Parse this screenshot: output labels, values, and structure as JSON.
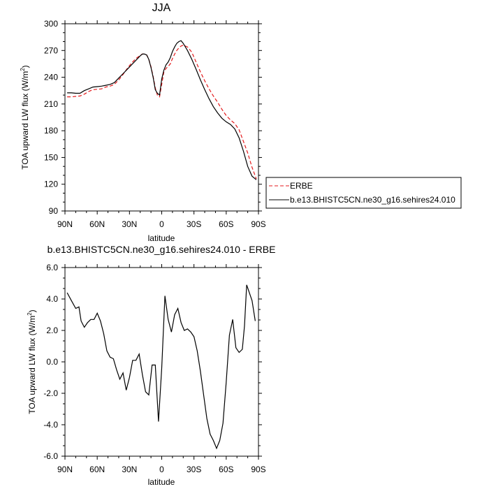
{
  "chart_data": [
    {
      "type": "line",
      "title": "JJA",
      "xlabel": "latitude",
      "ylabel": "TOA upward LW flux (W/m",
      "ylabel_sup": "2",
      "ylabel_close": ")",
      "xlim": [
        90,
        -90
      ],
      "ylim": [
        90,
        300
      ],
      "xticks": [
        90,
        60,
        30,
        0,
        -30,
        -60,
        -90
      ],
      "xtick_labels": [
        "90N",
        "60N",
        "30N",
        "0",
        "30S",
        "60S",
        "90S"
      ],
      "yticks": [
        90,
        120,
        150,
        180,
        210,
        240,
        270,
        300
      ],
      "ytick_labels": [
        "90",
        "120",
        "150",
        "180",
        "210",
        "240",
        "270",
        "300"
      ],
      "legend_position": "right",
      "series": [
        {
          "name": "ERBE",
          "color": "#e41a1c",
          "style": "dashed",
          "x": [
            88,
            84,
            80,
            76,
            72,
            68,
            64,
            60,
            56,
            52,
            48,
            44,
            40,
            36,
            32,
            28,
            24,
            20,
            18,
            16,
            14,
            12,
            10,
            8,
            6,
            4,
            2,
            0,
            -2,
            -4,
            -6,
            -8,
            -10,
            -12,
            -14,
            -16,
            -18,
            -20,
            -24,
            -28,
            -32,
            -36,
            -40,
            -44,
            -48,
            -52,
            -56,
            -60,
            -64,
            -68,
            -72,
            -76,
            -80,
            -84,
            -88
          ],
          "y": [
            218,
            218,
            218.5,
            219,
            221,
            224,
            226,
            226.5,
            227,
            229,
            230,
            232,
            237,
            243,
            250,
            256,
            261,
            264.5,
            266,
            266,
            265,
            260,
            252,
            241,
            228,
            220,
            218,
            232,
            246,
            250,
            252,
            255,
            261,
            266,
            270,
            273,
            275,
            276,
            274,
            268,
            257,
            246,
            236,
            227,
            219,
            212,
            204,
            197,
            192,
            188,
            181,
            168,
            155,
            139,
            126
          ]
        },
        {
          "name": "b.e13.BHISTC5CN.ne30_g16.sehires24.010",
          "color": "#000000",
          "style": "solid",
          "x": [
            88,
            84,
            80,
            76,
            72,
            68,
            64,
            60,
            56,
            52,
            48,
            44,
            40,
            36,
            32,
            28,
            24,
            20,
            18,
            16,
            14,
            12,
            10,
            8,
            6,
            4,
            2,
            0,
            -2,
            -4,
            -6,
            -8,
            -10,
            -12,
            -14,
            -16,
            -18,
            -20,
            -24,
            -28,
            -32,
            -36,
            -40,
            -44,
            -48,
            -52,
            -56,
            -60,
            -64,
            -68,
            -72,
            -76,
            -80,
            -84,
            -88
          ],
          "y": [
            222.5,
            222.5,
            222,
            222,
            225,
            227,
            229,
            229.5,
            230,
            231,
            232,
            234,
            239,
            244,
            249,
            254,
            259,
            264,
            266,
            266,
            265,
            260,
            251,
            240,
            226,
            222,
            220,
            238,
            248,
            254,
            257,
            262,
            269,
            274,
            278,
            280,
            281,
            278,
            270,
            260,
            249,
            237,
            226,
            216,
            207,
            200,
            194,
            190,
            187,
            182,
            172,
            157,
            140,
            129,
            125
          ]
        }
      ]
    },
    {
      "type": "line",
      "title": "b.e13.BHISTC5CN.ne30_g16.sehires24.010 - ERBE",
      "xlabel": "latitude",
      "ylabel": "TOA upward LW flux (W/m",
      "ylabel_sup": "2",
      "ylabel_close": ")",
      "xlim": [
        90,
        -90
      ],
      "ylim": [
        -6,
        6
      ],
      "xticks": [
        90,
        60,
        30,
        0,
        -30,
        -60,
        -90
      ],
      "xtick_labels": [
        "90N",
        "60N",
        "30N",
        "0",
        "30S",
        "60S",
        "90S"
      ],
      "yticks": [
        -6,
        -4,
        -2,
        0,
        2,
        4,
        6
      ],
      "ytick_labels": [
        "-6.0",
        "-4.0",
        "-2.0",
        "0.0",
        "2.0",
        "4.0",
        "6.0"
      ],
      "series": [
        {
          "name": "",
          "color": "#000000",
          "style": "solid",
          "x": [
            88,
            84,
            80,
            77,
            75,
            72,
            69,
            66,
            63,
            60,
            57,
            54,
            51,
            48,
            45,
            42,
            39,
            36,
            33,
            30,
            27,
            24,
            21,
            18,
            15,
            12,
            9,
            6,
            3,
            0,
            -3,
            -6,
            -9,
            -12,
            -15,
            -18,
            -21,
            -24,
            -27,
            -30,
            -33,
            -36,
            -39,
            -42,
            -45,
            -48,
            -51,
            -54,
            -57,
            -60,
            -63,
            -66,
            -69,
            -72,
            -75,
            -77,
            -79,
            -84,
            -87
          ],
          "y": [
            4.4,
            3.9,
            3.4,
            3.5,
            2.6,
            2.2,
            2.5,
            2.7,
            2.7,
            3.1,
            2.6,
            1.8,
            0.7,
            0.3,
            0.2,
            -0.5,
            -1.1,
            -0.7,
            -1.8,
            -1.0,
            0.1,
            0.1,
            0.5,
            -0.8,
            -1.9,
            -2.1,
            -0.2,
            -0.2,
            -3.8,
            -0.4,
            4.2,
            2.7,
            1.9,
            3.0,
            3.4,
            2.5,
            2.0,
            2.1,
            1.9,
            1.6,
            0.7,
            -0.6,
            -2.1,
            -3.6,
            -4.6,
            -5.0,
            -5.5,
            -5.0,
            -3.9,
            -1.3,
            1.7,
            2.7,
            0.9,
            0.6,
            0.8,
            2.3,
            4.9,
            3.9,
            2.6
          ]
        }
      ]
    }
  ]
}
